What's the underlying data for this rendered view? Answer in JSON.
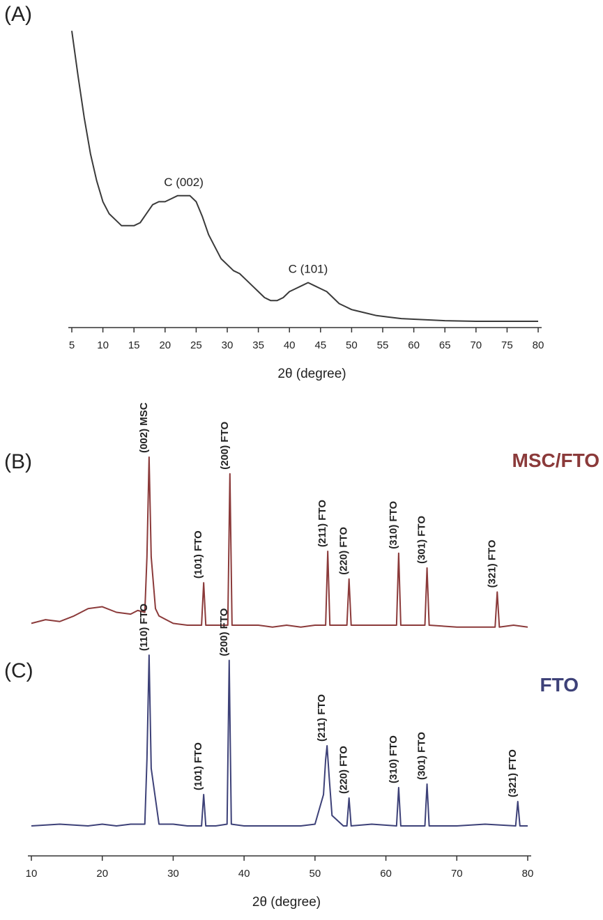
{
  "chart_data": [
    {
      "type": "line",
      "label": "(A)",
      "xlabel": "2θ (degree)",
      "xlim": [
        5,
        80
      ],
      "ylim": [
        0,
        100
      ],
      "xticks": [
        5,
        10,
        15,
        20,
        25,
        30,
        35,
        40,
        45,
        50,
        55,
        60,
        65,
        70,
        75,
        80
      ],
      "x": [
        5,
        6,
        7,
        8,
        9,
        10,
        11,
        12,
        13,
        14,
        15,
        16,
        17,
        18,
        19,
        20,
        21,
        22,
        23,
        24,
        25,
        26,
        27,
        28,
        29,
        30,
        31,
        32,
        33,
        34,
        35,
        36,
        37,
        38,
        39,
        40,
        41,
        42,
        43,
        44,
        45,
        46,
        47,
        48,
        49,
        50,
        52,
        54,
        56,
        58,
        60,
        65,
        70,
        75,
        80
      ],
      "series": [
        {
          "color": "#3a3a3a",
          "values": [
            99,
            84,
            70,
            58,
            49,
            42,
            38,
            36,
            34,
            34,
            34,
            35,
            38,
            41,
            42,
            42,
            43,
            44,
            44,
            44,
            42,
            37,
            31,
            27,
            23,
            21,
            19,
            18,
            16,
            14,
            12,
            10,
            9,
            9,
            10,
            12,
            13,
            14,
            15,
            14,
            13,
            12,
            10,
            8,
            7,
            6,
            5,
            4,
            3.5,
            3,
            2.8,
            2.3,
            2.1,
            2.1,
            2.1
          ]
        }
      ],
      "annotations": [
        {
          "x": 23,
          "text": "C (002)"
        },
        {
          "x": 43,
          "text": "C (101)"
        }
      ]
    },
    {
      "type": "line",
      "label": "(B)",
      "xlim": [
        10,
        80
      ],
      "ylim": [
        0,
        100
      ],
      "x": [
        10,
        12,
        14,
        16,
        18,
        20,
        22,
        24,
        25,
        26,
        26.3,
        26.6,
        26.9,
        27.5,
        28,
        30,
        32,
        34,
        34.3,
        34.6,
        36,
        37.7,
        38,
        38.3,
        40,
        42,
        44,
        46,
        48,
        50,
        51.5,
        51.8,
        52.1,
        54.5,
        54.8,
        55.1,
        58,
        61.5,
        61.8,
        62.1,
        64,
        65.5,
        65.8,
        66.1,
        70,
        75.4,
        75.7,
        76,
        78,
        80
      ],
      "series": [
        {
          "name": "MSC/FTO",
          "color": "#8b3a3a",
          "values": [
            4,
            6,
            5,
            8,
            12,
            13,
            10,
            9,
            11,
            10,
            40,
            94,
            40,
            12,
            8,
            4,
            3,
            3,
            26,
            3,
            3,
            3,
            85,
            3,
            3,
            3,
            2,
            3,
            2,
            3,
            3,
            43,
            3,
            3,
            28,
            3,
            3,
            3,
            42,
            3,
            3,
            3,
            34,
            3,
            2,
            2,
            21,
            2,
            3,
            2
          ]
        }
      ],
      "peak_labels": [
        {
          "x": 26.6,
          "text": "(002) MSC"
        },
        {
          "x": 34.3,
          "text": "(101) FTO"
        },
        {
          "x": 38,
          "text": "(200) FTO"
        },
        {
          "x": 51.8,
          "text": "(211) FTO"
        },
        {
          "x": 54.8,
          "text": "(220) FTO"
        },
        {
          "x": 61.8,
          "text": "(310) FTO"
        },
        {
          "x": 65.8,
          "text": "(301) FTO"
        },
        {
          "x": 75.7,
          "text": "(321) FTO"
        }
      ]
    },
    {
      "type": "line",
      "label": "(C)",
      "xlabel": "2θ (degree)",
      "xlim": [
        10,
        80
      ],
      "ylim": [
        0,
        100
      ],
      "xticks": [
        10,
        20,
        30,
        40,
        50,
        60,
        70,
        80
      ],
      "x": [
        10,
        14,
        18,
        20,
        22,
        24,
        26,
        26.3,
        26.6,
        26.9,
        28,
        30,
        32,
        34,
        34.3,
        34.6,
        36,
        37.6,
        37.9,
        38.2,
        40,
        44,
        48,
        50,
        51.2,
        51.5,
        51.7,
        52,
        52.4,
        54,
        54.5,
        54.8,
        55.1,
        58,
        61.5,
        61.8,
        62.1,
        64,
        65.5,
        65.8,
        66.1,
        70,
        74,
        78.3,
        78.6,
        78.9,
        80
      ],
      "series": [
        {
          "name": "FTO",
          "color": "#3d4178",
          "values": [
            2,
            3,
            2,
            3,
            2,
            3,
            3,
            40,
            100,
            35,
            3,
            3,
            2,
            2,
            20,
            2,
            2,
            3,
            97,
            3,
            2,
            2,
            2,
            3,
            20,
            40,
            48,
            30,
            8,
            2,
            2,
            18,
            2,
            3,
            2,
            24,
            2,
            2,
            2,
            26,
            2,
            2,
            3,
            2,
            16,
            2,
            2
          ]
        }
      ],
      "peak_labels": [
        {
          "x": 26.6,
          "text": "(110) FTO"
        },
        {
          "x": 34.3,
          "text": "(101) FTO"
        },
        {
          "x": 37.9,
          "text": "(200) FTO"
        },
        {
          "x": 51.7,
          "text": "(211) FTO"
        },
        {
          "x": 54.8,
          "text": "(220) FTO"
        },
        {
          "x": 61.8,
          "text": "(310) FTO"
        },
        {
          "x": 65.8,
          "text": "(301) FTO"
        },
        {
          "x": 78.6,
          "text": "(321) FTO"
        }
      ]
    }
  ]
}
